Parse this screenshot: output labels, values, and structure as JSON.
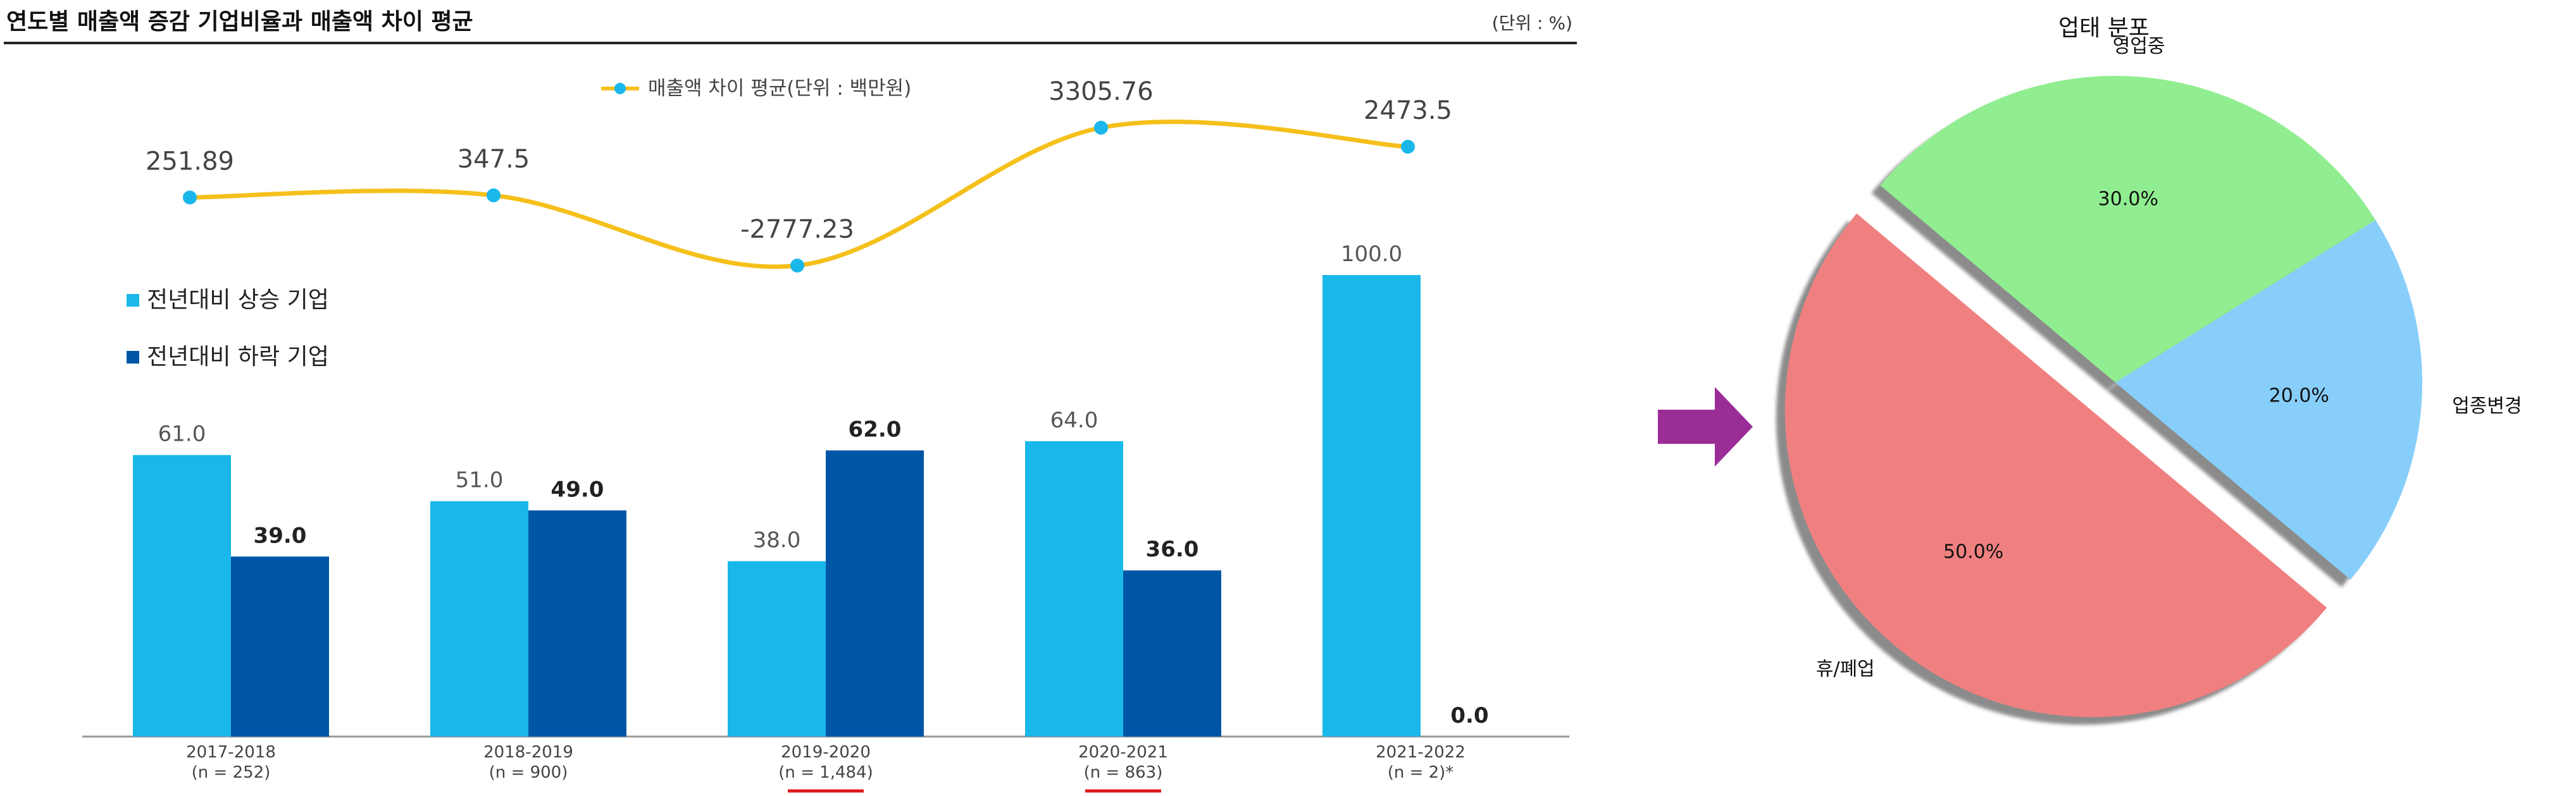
{
  "left_panel": {
    "title": "연도별 매출액 증감 기업비율과 매출액 차이 평균",
    "unit": "(단위 : %)"
  },
  "chart_data": [
    {
      "type": "bar",
      "categories": [
        "2017-2018",
        "2018-2019",
        "2019-2020",
        "2020-2021",
        "2021-2022"
      ],
      "category_notes": [
        "(n = 252)",
        "(n = 900)",
        "(n = 1,484)",
        "(n = 863)",
        "(n = 2)*"
      ],
      "underlined_categories": [
        "2019-2020",
        "2020-2021"
      ],
      "series": [
        {
          "name": "전년대비 상승 기업",
          "color": "#1ab7ea",
          "values": [
            61.0,
            51.0,
            38.0,
            64.0,
            100.0
          ]
        },
        {
          "name": "전년대비 하락 기업",
          "color": "#0056a6",
          "values": [
            39.0,
            49.0,
            62.0,
            36.0,
            0.0
          ]
        }
      ],
      "ylim": [
        0,
        100
      ],
      "grid": false,
      "legend_placement": "left"
    },
    {
      "type": "line",
      "categories": [
        "2017-2018",
        "2018-2019",
        "2019-2020",
        "2020-2021",
        "2021-2022"
      ],
      "series": [
        {
          "name": "매출액 차이 평균(단위 : 백만원)",
          "color": "#f5c01b",
          "point_color": "#1ab7ea",
          "values": [
            251.89,
            347.5,
            -2777.23,
            3305.76,
            2473.5
          ]
        }
      ],
      "legend_placement": "top-center"
    },
    {
      "type": "pie",
      "title": "업태 분포",
      "slices": [
        {
          "label": "영업중",
          "value": 30.0,
          "display": "30.0%",
          "color": "#90ee90",
          "exploded": false
        },
        {
          "label": "업종변경",
          "value": 20.0,
          "display": "20.0%",
          "color": "#87cefa",
          "exploded": false
        },
        {
          "label": "휴/폐업",
          "value": 50.0,
          "display": "50.0%",
          "color": "#f08080",
          "exploded": true
        }
      ],
      "shadow": true
    }
  ],
  "arrow_color": "#9b2d96"
}
